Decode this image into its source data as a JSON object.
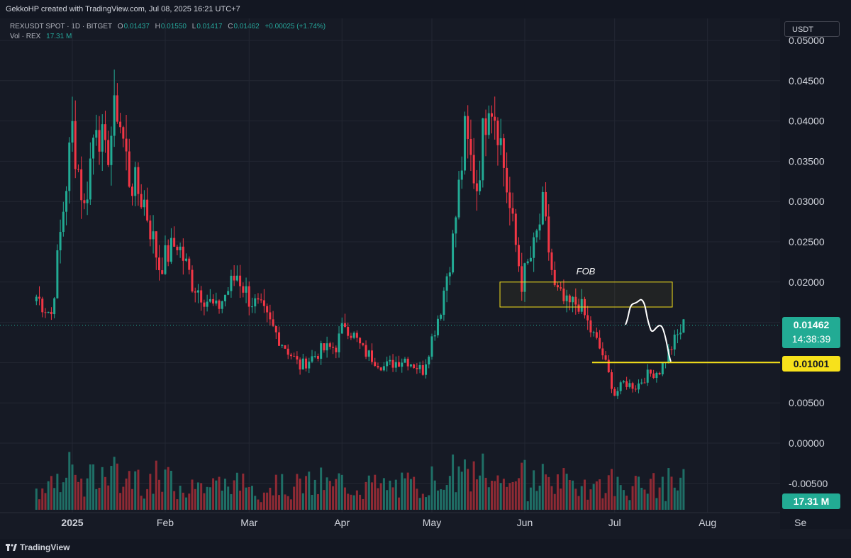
{
  "header": {
    "credit": "GekkoHP created with TradingView.com, Jul 08, 2025 16:21 UTC+7"
  },
  "legend": {
    "symbol": "REXUSDT SPOT · 1D · BITGET",
    "open_label": "O",
    "open": "0.01437",
    "high_label": "H",
    "high": "0.01550",
    "low_label": "L",
    "low": "0.01417",
    "close_label": "C",
    "close": "0.01462",
    "change": "+0.00025 (+1.74%)",
    "vol_label": "Vol · REX",
    "vol": "17.31 M"
  },
  "currency_button": "USDT",
  "last_price": {
    "price": "0.01462",
    "countdown": "14:38:39"
  },
  "level_price": "0.01001",
  "volume_tag": "17.31 M",
  "annotation": {
    "label": "FOB",
    "zone_low": 0.0169,
    "zone_high": 0.02
  },
  "footer": {
    "brand": "TradingView"
  },
  "colors": {
    "up": "#22ab94",
    "down": "#f23645",
    "level": "#f7e11b",
    "background": "#161a25"
  },
  "chart_data": {
    "type": "candlestick",
    "symbol": "REXUSDT",
    "interval": "1D",
    "y_ticks": [
      "0.05000",
      "0.04500",
      "0.04000",
      "0.03500",
      "0.03000",
      "0.02500",
      "0.02000",
      "0.01500",
      "0.01000",
      "0.00500",
      "0.00000",
      "-0.00500"
    ],
    "y_tick_values": [
      0.05,
      0.045,
      0.04,
      0.035,
      0.03,
      0.025,
      0.02,
      0.015,
      0.01,
      0.005,
      0.0,
      -0.005
    ],
    "x_ticks": [
      "2025",
      "Feb",
      "Mar",
      "Apr",
      "May",
      "Jun",
      "Jul",
      "Aug",
      "Se"
    ],
    "ylim": [
      -0.0075,
      0.0525
    ],
    "horizontal_level": 0.01001,
    "last_close": 0.01462,
    "series_close_path": [
      {
        "date": "2024-12-20",
        "close": 0.0182
      },
      {
        "date": "2024-12-25",
        "close": 0.016
      },
      {
        "date": "2025-01-01",
        "close": 0.039
      },
      {
        "date": "2025-01-05",
        "close": 0.029
      },
      {
        "date": "2025-01-09",
        "close": 0.041
      },
      {
        "date": "2025-01-12",
        "close": 0.035
      },
      {
        "date": "2025-01-16",
        "close": 0.042
      },
      {
        "date": "2025-01-20",
        "close": 0.033
      },
      {
        "date": "2025-01-25",
        "close": 0.03
      },
      {
        "date": "2025-01-30",
        "close": 0.022
      },
      {
        "date": "2025-02-05",
        "close": 0.025
      },
      {
        "date": "2025-02-10",
        "close": 0.02
      },
      {
        "date": "2025-02-18",
        "close": 0.0165
      },
      {
        "date": "2025-02-25",
        "close": 0.021
      },
      {
        "date": "2025-03-01",
        "close": 0.018
      },
      {
        "date": "2025-03-05",
        "close": 0.0165
      },
      {
        "date": "2025-03-12",
        "close": 0.0125
      },
      {
        "date": "2025-03-18",
        "close": 0.0095
      },
      {
        "date": "2025-03-25",
        "close": 0.0115
      },
      {
        "date": "2025-03-30",
        "close": 0.012
      },
      {
        "date": "2025-04-02",
        "close": 0.015
      },
      {
        "date": "2025-04-08",
        "close": 0.0115
      },
      {
        "date": "2025-04-15",
        "close": 0.0095
      },
      {
        "date": "2025-04-22",
        "close": 0.0105
      },
      {
        "date": "2025-04-28",
        "close": 0.009
      },
      {
        "date": "2025-05-04",
        "close": 0.017
      },
      {
        "date": "2025-05-08",
        "close": 0.025
      },
      {
        "date": "2025-05-12",
        "close": 0.038
      },
      {
        "date": "2025-05-16",
        "close": 0.032
      },
      {
        "date": "2025-05-20",
        "close": 0.044
      },
      {
        "date": "2025-05-23",
        "close": 0.04
      },
      {
        "date": "2025-05-27",
        "close": 0.029
      },
      {
        "date": "2025-05-31",
        "close": 0.02
      },
      {
        "date": "2025-06-04",
        "close": 0.024
      },
      {
        "date": "2025-06-07",
        "close": 0.029
      },
      {
        "date": "2025-06-11",
        "close": 0.019
      },
      {
        "date": "2025-06-15",
        "close": 0.017
      },
      {
        "date": "2025-06-19",
        "close": 0.0175
      },
      {
        "date": "2025-06-23",
        "close": 0.014
      },
      {
        "date": "2025-06-27",
        "close": 0.011
      },
      {
        "date": "2025-07-01",
        "close": 0.006
      },
      {
        "date": "2025-07-04",
        "close": 0.0075
      },
      {
        "date": "2025-07-08",
        "close": 0.007
      },
      {
        "date": "2025-07-12",
        "close": 0.0085
      },
      {
        "date": "2025-07-16",
        "close": 0.009
      },
      {
        "date": "2025-07-20",
        "close": 0.012
      },
      {
        "date": "2025-07-24",
        "close": 0.0146
      }
    ]
  }
}
